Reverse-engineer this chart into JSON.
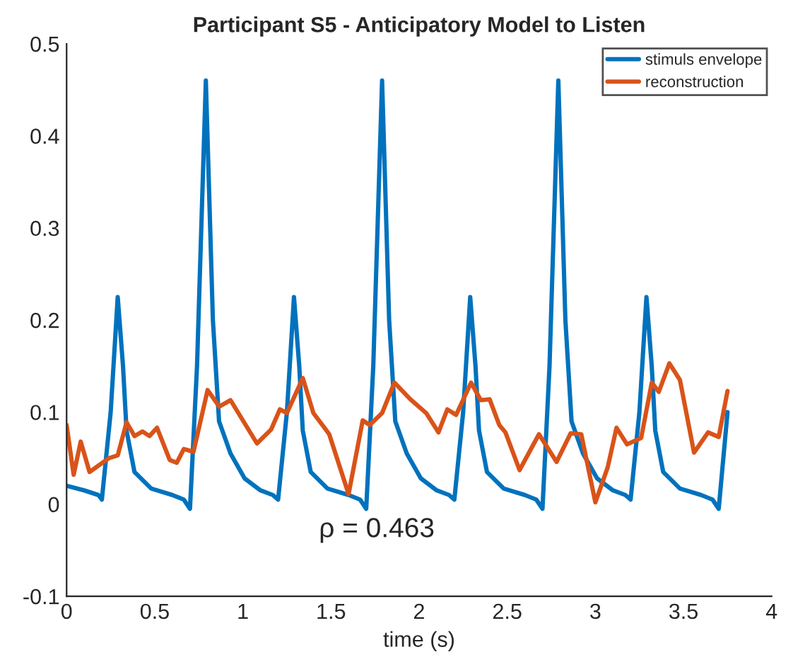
{
  "chart_data": {
    "type": "line",
    "title": "Participant S5 - Anticipatory Model to Listen",
    "xlabel": "time (s)",
    "series": [
      {
        "name": "stimuls envelope",
        "color": "#0072bd",
        "x": [
          0,
          0.1,
          0.18,
          0.2,
          0.25,
          0.29,
          0.32,
          0.34,
          0.385,
          0.48,
          0.6,
          0.665,
          0.7,
          0.74,
          0.79,
          0.83,
          0.865,
          0.93,
          1.01,
          1.1,
          1.17,
          1.2,
          1.25,
          1.29,
          1.32,
          1.34,
          1.385,
          1.48,
          1.6,
          1.665,
          1.7,
          1.74,
          1.79,
          1.83,
          1.865,
          1.93,
          2.01,
          2.1,
          2.17,
          2.2,
          2.25,
          2.29,
          2.32,
          2.34,
          2.385,
          2.48,
          2.6,
          2.665,
          2.7,
          2.74,
          2.79,
          2.83,
          2.865,
          2.93,
          3.01,
          3.1,
          3.17,
          3.2,
          3.25,
          3.29,
          3.32,
          3.34,
          3.385,
          3.48,
          3.6,
          3.665,
          3.7,
          3.75
        ],
        "values": [
          0.02,
          0.015,
          0.01,
          0.005,
          0.1,
          0.225,
          0.15,
          0.08,
          0.035,
          0.017,
          0.01,
          0.005,
          -0.005,
          0.15,
          0.46,
          0.2,
          0.09,
          0.055,
          0.028,
          0.015,
          0.01,
          0.005,
          0.1,
          0.225,
          0.15,
          0.08,
          0.035,
          0.017,
          0.01,
          0.005,
          -0.005,
          0.15,
          0.46,
          0.2,
          0.09,
          0.055,
          0.028,
          0.015,
          0.01,
          0.005,
          0.1,
          0.225,
          0.15,
          0.08,
          0.035,
          0.017,
          0.01,
          0.005,
          -0.005,
          0.15,
          0.46,
          0.2,
          0.09,
          0.055,
          0.028,
          0.015,
          0.01,
          0.005,
          0.1,
          0.225,
          0.15,
          0.08,
          0.035,
          0.017,
          0.01,
          0.005,
          -0.005,
          0.1
        ]
      },
      {
        "name": "reconstruction",
        "color": "#d95319",
        "x": [
          0,
          0.04,
          0.08,
          0.13,
          0.24,
          0.29,
          0.34,
          0.385,
          0.43,
          0.47,
          0.513,
          0.585,
          0.625,
          0.665,
          0.72,
          0.8,
          0.866,
          0.93,
          1.08,
          1.16,
          1.21,
          1.25,
          1.34,
          1.4,
          1.467,
          1.49,
          1.6,
          1.68,
          1.72,
          1.79,
          1.86,
          1.95,
          2.04,
          2.11,
          2.16,
          2.21,
          2.295,
          2.35,
          2.4,
          2.455,
          2.49,
          2.57,
          2.68,
          2.78,
          2.86,
          2.92,
          3.0,
          3.07,
          3.12,
          3.18,
          3.26,
          3.32,
          3.36,
          3.42,
          3.48,
          3.56,
          3.64,
          3.7,
          3.75
        ],
        "values": [
          0.086,
          0.032,
          0.068,
          0.035,
          0.05,
          0.053,
          0.089,
          0.074,
          0.079,
          0.074,
          0.083,
          0.048,
          0.045,
          0.06,
          0.057,
          0.124,
          0.106,
          0.113,
          0.066,
          0.081,
          0.103,
          0.099,
          0.137,
          0.099,
          0.082,
          0.076,
          0.011,
          0.091,
          0.086,
          0.099,
          0.132,
          0.114,
          0.099,
          0.078,
          0.103,
          0.097,
          0.132,
          0.113,
          0.114,
          0.086,
          0.078,
          0.037,
          0.076,
          0.046,
          0.077,
          0.076,
          0.002,
          0.04,
          0.083,
          0.065,
          0.072,
          0.132,
          0.122,
          0.153,
          0.135,
          0.056,
          0.078,
          0.073,
          0.123
        ]
      }
    ],
    "xlim": [
      0,
      4
    ],
    "xticks": [
      0,
      0.5,
      1,
      1.5,
      2,
      2.5,
      3,
      3.5,
      4
    ],
    "ylim": [
      -0.1,
      0.5
    ],
    "yticks": [
      -0.1,
      0,
      0.1,
      0.2,
      0.3,
      0.4,
      0.5
    ],
    "annotations": [
      "ρ = 0.463"
    ],
    "legend": "top right",
    "grid": false,
    "line_style": "solid"
  }
}
